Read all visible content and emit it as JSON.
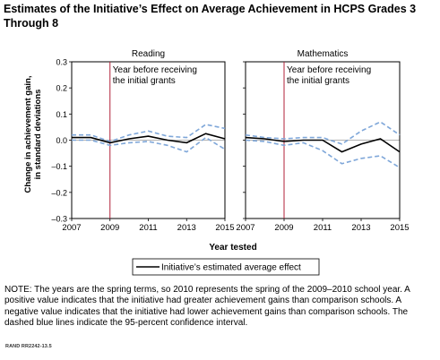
{
  "title": "Estimates of the Initiative’s Effect on Average Achievement in HCPS Grades 3 Through 8",
  "xlabel": "Year tested",
  "ylabel_line1": "Change in achievement gain,",
  "ylabel_line2": "in standard deviations",
  "legend_label": "Initiative’s estimated average effect",
  "note": "NOTE: The years are the spring terms, so 2010 represents the spring of the 2009–2010 school year. A positive value indicates that the initiative had greater achievement gains than comparison schools. A negative value indicates that the initiative had lower achievement gains than comparison schools. The dashed blue lines indicate the 95-percent confidence interval.",
  "source": "RAND RR2242-13.5",
  "colors": {
    "estimate": "#000000",
    "ci": "#7fa7d9",
    "reference": "#b0223a",
    "zero": "#999999",
    "axis": "#000000"
  },
  "chart_data": [
    {
      "type": "line",
      "title": "Reading",
      "annotation_line1": "Year before receiving",
      "annotation_line2": "the initial grants",
      "reference_x": 2009,
      "xlim": [
        2007,
        2015
      ],
      "ylim": [
        -0.3,
        0.3
      ],
      "xticks": [
        2007,
        2009,
        2011,
        2013,
        2015
      ],
      "yticks": [
        0.3,
        0.2,
        0.1,
        0.0,
        -0.1,
        -0.2,
        -0.3
      ],
      "ytick_labels": [
        "0.3",
        "0.2",
        "0.1",
        "0.0",
        "–0.1",
        "–0.2",
        "–0.3"
      ],
      "x": [
        2007,
        2008,
        2009,
        2010,
        2011,
        2012,
        2013,
        2014,
        2015
      ],
      "estimate": [
        0.01,
        0.01,
        -0.01,
        0.005,
        0.015,
        0.0,
        -0.01,
        0.025,
        0.005
      ],
      "ci_upper": [
        0.02,
        0.02,
        -0.005,
        0.02,
        0.035,
        0.015,
        0.01,
        0.06,
        0.045
      ],
      "ci_lower": [
        0.0,
        0.0,
        -0.02,
        -0.01,
        -0.005,
        -0.02,
        -0.045,
        0.01,
        -0.035
      ]
    },
    {
      "type": "line",
      "title": "Mathematics",
      "annotation_line1": "Year before receiving",
      "annotation_line2": "the initial grants",
      "reference_x": 2009,
      "xlim": [
        2007,
        2015
      ],
      "ylim": [
        -0.3,
        0.3
      ],
      "xticks": [
        2007,
        2009,
        2011,
        2013,
        2015
      ],
      "x": [
        2007,
        2008,
        2009,
        2010,
        2011,
        2012,
        2013,
        2014,
        2015
      ],
      "estimate": [
        0.01,
        0.005,
        -0.005,
        0.0,
        0.0,
        -0.045,
        -0.015,
        0.005,
        -0.045
      ],
      "ci_upper": [
        0.02,
        0.01,
        0.005,
        0.01,
        0.01,
        -0.015,
        0.035,
        0.07,
        0.02
      ],
      "ci_lower": [
        0.0,
        -0.005,
        -0.02,
        -0.01,
        -0.04,
        -0.09,
        -0.07,
        -0.06,
        -0.105
      ]
    }
  ]
}
